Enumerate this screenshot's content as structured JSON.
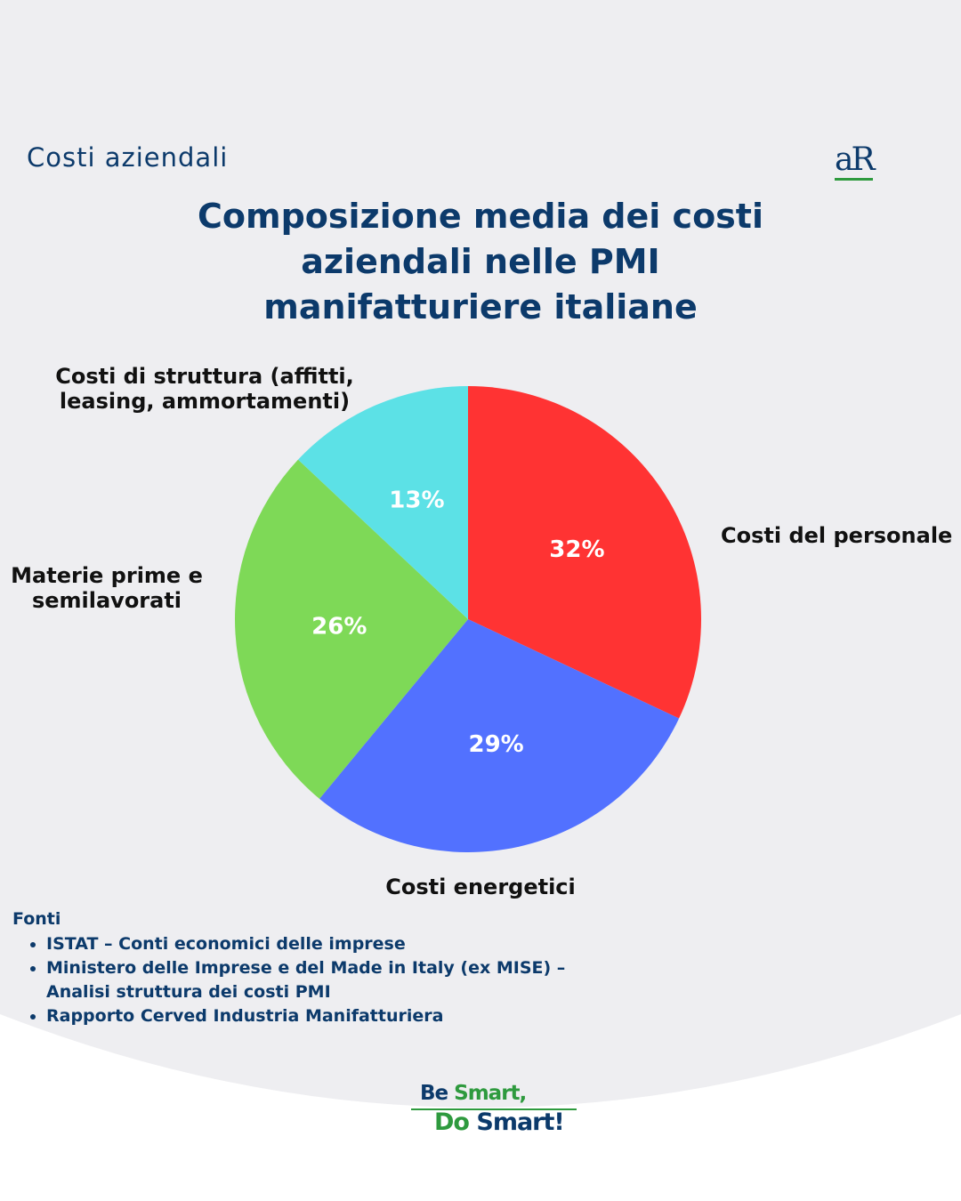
{
  "header": {
    "section": "Costi aziendali",
    "logo": "aR"
  },
  "chart_data": {
    "type": "pie",
    "title": "Composizione media dei costi aziendali nelle PMI manifatturiere italiane",
    "categories": [
      "Costi del personale",
      "Costi energetici",
      "Materie prime e semilavorati",
      "Costi di struttura (affitti, leasing, ammortamenti)"
    ],
    "values": [
      32,
      29,
      26,
      13
    ],
    "value_labels": [
      "32%",
      "29%",
      "26%",
      "13%"
    ],
    "colors": [
      "#ff3333",
      "#5271ff",
      "#7ed957",
      "#5ce1e6"
    ]
  },
  "sources": {
    "title": "Fonti",
    "items": [
      "ISTAT – Conti economici delle imprese",
      "Ministero delle Imprese e del Made in Italy (ex MISE) – Analisi struttura dei costi PMI",
      "Rapporto Cerved Industria Manifatturiera"
    ]
  },
  "footer": {
    "line1": [
      "Be",
      "Smart,"
    ],
    "line2": [
      "Do",
      "Smart!"
    ]
  }
}
